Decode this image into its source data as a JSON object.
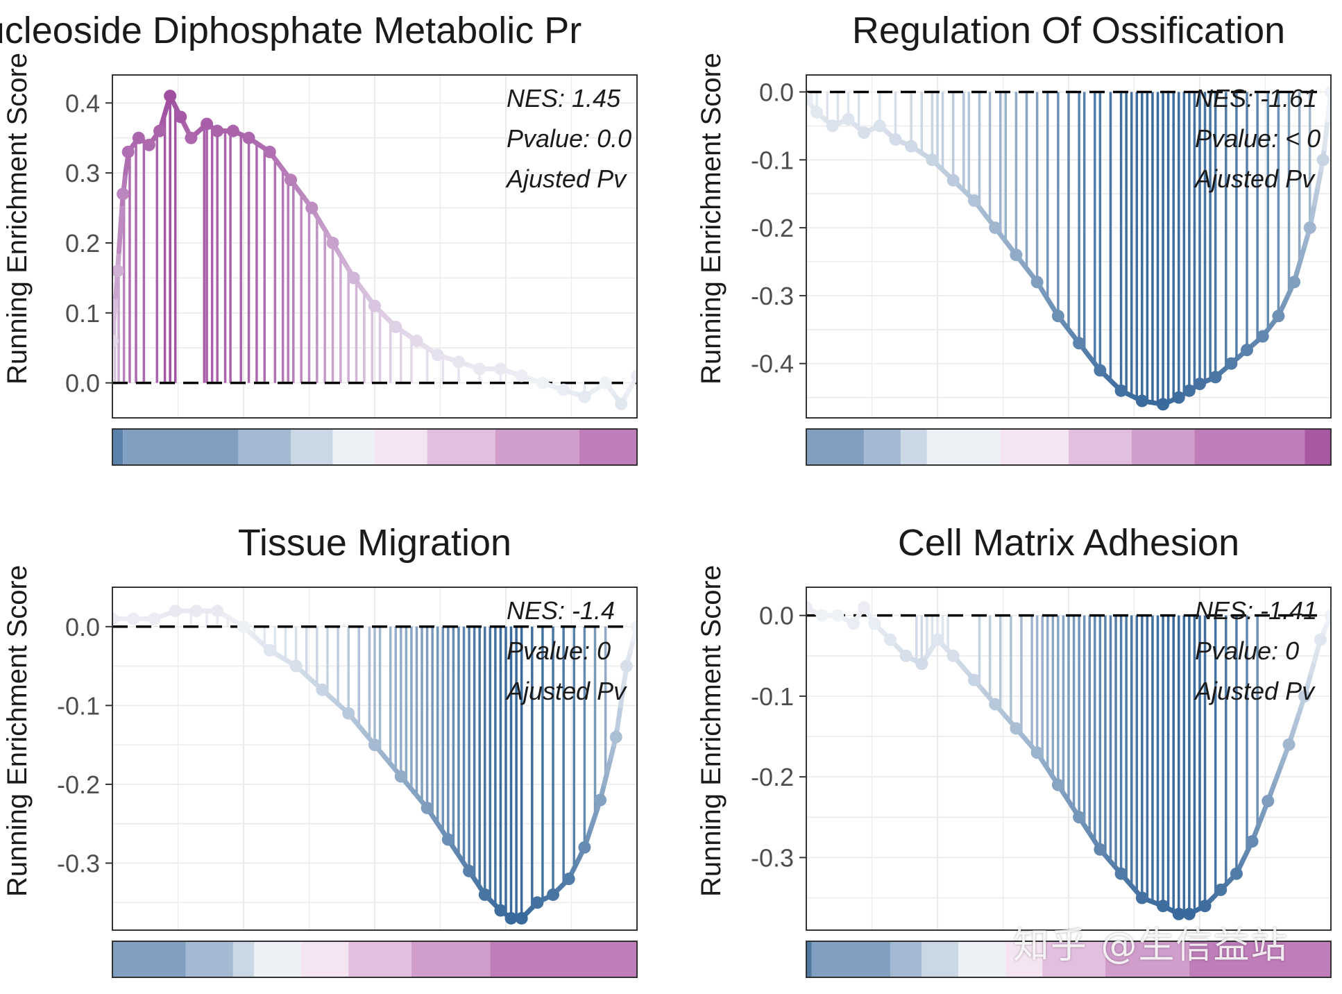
{
  "chart_data": [
    {
      "type": "line",
      "panel": "top-left",
      "title": "Nucleoside Diphosphate Metabolic Pr",
      "ylabel": "Running Enrichment Score",
      "yticks": [
        "0.0",
        "0.1",
        "0.2",
        "0.3",
        "0.4"
      ],
      "ylim": [
        -0.05,
        0.44
      ],
      "annotations": [
        "NES: 1.45",
        "Pvalue: 0.0",
        "Ajusted Pv"
      ],
      "rank_fraction": [
        0,
        0.01,
        0.02,
        0.03,
        0.05,
        0.07,
        0.09,
        0.11,
        0.13,
        0.15,
        0.18,
        0.2,
        0.23,
        0.26,
        0.3,
        0.34,
        0.38,
        0.42,
        0.46,
        0.5,
        0.54,
        0.58,
        0.62,
        0.66,
        0.7,
        0.74,
        0.78,
        0.82,
        0.86,
        0.9,
        0.94,
        0.97,
        1.0
      ],
      "es": [
        0.06,
        0.16,
        0.27,
        0.33,
        0.35,
        0.34,
        0.36,
        0.41,
        0.38,
        0.35,
        0.37,
        0.36,
        0.36,
        0.35,
        0.33,
        0.29,
        0.25,
        0.2,
        0.15,
        0.11,
        0.08,
        0.06,
        0.04,
        0.03,
        0.02,
        0.02,
        0.01,
        0.0,
        -0.01,
        -0.02,
        0.0,
        -0.03,
        0.01
      ],
      "hits": [
        0.005,
        0.012,
        0.022,
        0.033,
        0.045,
        0.06,
        0.085,
        0.1,
        0.11,
        0.12,
        0.175,
        0.18,
        0.19,
        0.2,
        0.215,
        0.225,
        0.245,
        0.26,
        0.275,
        0.29,
        0.31,
        0.325,
        0.335,
        0.345,
        0.36,
        0.375,
        0.39,
        0.405,
        0.42,
        0.435,
        0.45,
        0.465,
        0.48,
        0.495,
        0.51,
        0.53,
        0.55,
        0.57,
        0.6,
        0.63,
        0.66,
        0.7,
        0.74,
        0.78,
        0.84,
        0.9,
        0.95
      ],
      "rank_bar": [
        {
          "to": 0.02,
          "color": "#5b82ad"
        },
        {
          "to": 0.24,
          "color": "#819fc1"
        },
        {
          "to": 0.34,
          "color": "#a4b9d2"
        },
        {
          "to": 0.42,
          "color": "#cad7e4"
        },
        {
          "to": 0.5,
          "color": "#edf0f5"
        },
        {
          "to": 0.6,
          "color": "#f5e4f1"
        },
        {
          "to": 0.73,
          "color": "#e3bfdf"
        },
        {
          "to": 0.89,
          "color": "#d19ecc"
        },
        {
          "to": 1.0,
          "color": "#bf7dba"
        }
      ]
    },
    {
      "type": "line",
      "panel": "top-right",
      "title": "Regulation Of Ossification",
      "ylabel": "Running Enrichment Score",
      "yticks": [
        "0.0",
        "-0.1",
        "-0.2",
        "-0.3",
        "-0.4"
      ],
      "ylim": [
        -0.48,
        0.025
      ],
      "annotations": [
        "NES: -1.61",
        "Pvalue: < 0",
        "Ajusted Pv"
      ],
      "rank_fraction": [
        0,
        0.02,
        0.05,
        0.08,
        0.11,
        0.14,
        0.17,
        0.2,
        0.24,
        0.28,
        0.32,
        0.36,
        0.4,
        0.44,
        0.48,
        0.52,
        0.56,
        0.6,
        0.64,
        0.68,
        0.71,
        0.73,
        0.75,
        0.78,
        0.81,
        0.84,
        0.87,
        0.9,
        0.93,
        0.96,
        0.985,
        1.0
      ],
      "es": [
        -0.01,
        -0.03,
        -0.05,
        -0.04,
        -0.06,
        -0.05,
        -0.07,
        -0.08,
        -0.1,
        -0.13,
        -0.16,
        -0.2,
        -0.24,
        -0.28,
        -0.33,
        -0.37,
        -0.41,
        -0.44,
        -0.455,
        -0.46,
        -0.45,
        -0.44,
        -0.43,
        -0.42,
        -0.4,
        -0.38,
        -0.36,
        -0.33,
        -0.28,
        -0.2,
        -0.1,
        0.0
      ],
      "hits": [
        0.01,
        0.02,
        0.04,
        0.06,
        0.08,
        0.1,
        0.14,
        0.17,
        0.2,
        0.22,
        0.24,
        0.25,
        0.26,
        0.28,
        0.3,
        0.31,
        0.33,
        0.35,
        0.37,
        0.38,
        0.4,
        0.42,
        0.44,
        0.46,
        0.48,
        0.5,
        0.52,
        0.53,
        0.55,
        0.56,
        0.58,
        0.6,
        0.61,
        0.62,
        0.63,
        0.64,
        0.65,
        0.66,
        0.67,
        0.68,
        0.69,
        0.7,
        0.71,
        0.72,
        0.73,
        0.74,
        0.75,
        0.76,
        0.77,
        0.78,
        0.8,
        0.82,
        0.84,
        0.86,
        0.88,
        0.9,
        0.92,
        0.94,
        0.96
      ],
      "rank_bar": [
        {
          "to": 0.11,
          "color": "#819fc1"
        },
        {
          "to": 0.18,
          "color": "#a4b9d2"
        },
        {
          "to": 0.23,
          "color": "#cad7e4"
        },
        {
          "to": 0.37,
          "color": "#edf0f5"
        },
        {
          "to": 0.5,
          "color": "#f5e4f1"
        },
        {
          "to": 0.62,
          "color": "#e3bfdf"
        },
        {
          "to": 0.74,
          "color": "#d19ecc"
        },
        {
          "to": 0.95,
          "color": "#bf7dba"
        },
        {
          "to": 1.0,
          "color": "#a857a3"
        }
      ]
    },
    {
      "type": "line",
      "panel": "bottom-left",
      "title": "Tissue Migration",
      "ylabel": "Running Enrichment Score",
      "yticks": [
        "0.0",
        "-0.1",
        "-0.2",
        "-0.3"
      ],
      "ylim": [
        -0.385,
        0.05
      ],
      "annotations": [
        "NES: -1.4",
        "Pvalue: 0",
        "Ajusted Pv"
      ],
      "rank_fraction": [
        0,
        0.04,
        0.08,
        0.12,
        0.16,
        0.2,
        0.25,
        0.3,
        0.35,
        0.4,
        0.45,
        0.5,
        0.55,
        0.6,
        0.64,
        0.68,
        0.71,
        0.74,
        0.76,
        0.78,
        0.81,
        0.84,
        0.87,
        0.9,
        0.93,
        0.96,
        0.98,
        1.0
      ],
      "es": [
        0.01,
        0.01,
        0.01,
        0.02,
        0.02,
        0.02,
        0.0,
        -0.03,
        -0.05,
        -0.08,
        -0.11,
        -0.15,
        -0.19,
        -0.23,
        -0.27,
        -0.31,
        -0.34,
        -0.36,
        -0.37,
        -0.37,
        -0.35,
        -0.34,
        -0.32,
        -0.28,
        -0.22,
        -0.14,
        -0.05,
        0.0
      ],
      "hits": [
        0.15,
        0.18,
        0.2,
        0.22,
        0.25,
        0.27,
        0.29,
        0.31,
        0.33,
        0.35,
        0.37,
        0.39,
        0.41,
        0.43,
        0.45,
        0.47,
        0.49,
        0.5,
        0.51,
        0.53,
        0.54,
        0.55,
        0.56,
        0.57,
        0.58,
        0.59,
        0.6,
        0.61,
        0.62,
        0.63,
        0.64,
        0.65,
        0.66,
        0.67,
        0.68,
        0.69,
        0.7,
        0.71,
        0.72,
        0.73,
        0.74,
        0.75,
        0.76,
        0.77,
        0.78,
        0.8,
        0.82,
        0.84,
        0.86,
        0.88,
        0.9,
        0.92,
        0.94
      ],
      "rank_bar": [
        {
          "to": 0.14,
          "color": "#819fc1"
        },
        {
          "to": 0.23,
          "color": "#a4b9d2"
        },
        {
          "to": 0.27,
          "color": "#cad7e4"
        },
        {
          "to": 0.36,
          "color": "#edf0f5"
        },
        {
          "to": 0.45,
          "color": "#f5e4f1"
        },
        {
          "to": 0.57,
          "color": "#e3bfdf"
        },
        {
          "to": 0.72,
          "color": "#d19ecc"
        },
        {
          "to": 1.0,
          "color": "#bf7dba"
        }
      ]
    },
    {
      "type": "line",
      "panel": "bottom-right",
      "title": "Cell Matrix Adhesion",
      "ylabel": "Running Enrichment Score",
      "yticks": [
        "0.0",
        "-0.1",
        "-0.2",
        "-0.3"
      ],
      "ylim": [
        -0.39,
        0.035
      ],
      "annotations": [
        "NES: -1.41",
        "Pvalue: 0",
        "Ajusted Pv"
      ],
      "rank_fraction": [
        0,
        0.03,
        0.06,
        0.09,
        0.11,
        0.13,
        0.16,
        0.19,
        0.22,
        0.25,
        0.28,
        0.32,
        0.36,
        0.4,
        0.44,
        0.48,
        0.52,
        0.56,
        0.6,
        0.64,
        0.68,
        0.71,
        0.73,
        0.76,
        0.79,
        0.82,
        0.85,
        0.88,
        0.92,
        0.95,
        0.98,
        1.0
      ],
      "es": [
        0.01,
        0.0,
        0.0,
        -0.01,
        0.01,
        -0.01,
        -0.03,
        -0.05,
        -0.06,
        -0.03,
        -0.05,
        -0.08,
        -0.11,
        -0.14,
        -0.17,
        -0.21,
        -0.25,
        -0.29,
        -0.32,
        -0.35,
        -0.36,
        -0.37,
        -0.37,
        -0.36,
        -0.34,
        -0.32,
        -0.28,
        -0.23,
        -0.16,
        -0.1,
        -0.03,
        0.0
      ],
      "hits": [
        0.21,
        0.22,
        0.23,
        0.24,
        0.25,
        0.26,
        0.27,
        0.33,
        0.35,
        0.37,
        0.39,
        0.41,
        0.43,
        0.44,
        0.45,
        0.46,
        0.47,
        0.48,
        0.49,
        0.5,
        0.51,
        0.52,
        0.53,
        0.54,
        0.55,
        0.56,
        0.57,
        0.58,
        0.59,
        0.6,
        0.61,
        0.62,
        0.63,
        0.64,
        0.65,
        0.66,
        0.67,
        0.68,
        0.69,
        0.7,
        0.71,
        0.72,
        0.73,
        0.74,
        0.75,
        0.76,
        0.78,
        0.8,
        0.82,
        0.84,
        0.86
      ],
      "rank_bar": [
        {
          "to": 0.01,
          "color": "#4f779f"
        },
        {
          "to": 0.16,
          "color": "#819fc1"
        },
        {
          "to": 0.22,
          "color": "#a4b9d2"
        },
        {
          "to": 0.29,
          "color": "#cad7e4"
        },
        {
          "to": 0.38,
          "color": "#edf0f5"
        },
        {
          "to": 0.45,
          "color": "#f5e4f1"
        },
        {
          "to": 0.57,
          "color": "#e3bfdf"
        },
        {
          "to": 0.73,
          "color": "#d19ecc"
        },
        {
          "to": 1.0,
          "color": "#bf7dba"
        }
      ]
    }
  ],
  "colors": {
    "positive": "#a04ea0",
    "neutral": "#eef1f6",
    "negative": "#3a6a9c",
    "grid": "#ebebeb",
    "frame": "#333333",
    "tick_label": "#4d4d4d"
  },
  "watermark": "知乎 @生信益站"
}
